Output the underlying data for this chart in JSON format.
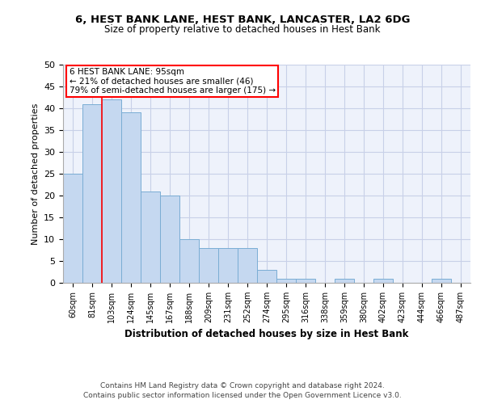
{
  "title1": "6, HEST BANK LANE, HEST BANK, LANCASTER, LA2 6DG",
  "title2": "Size of property relative to detached houses in Hest Bank",
  "xlabel": "Distribution of detached houses by size in Hest Bank",
  "ylabel": "Number of detached properties",
  "categories": [
    "60sqm",
    "81sqm",
    "103sqm",
    "124sqm",
    "145sqm",
    "167sqm",
    "188sqm",
    "209sqm",
    "231sqm",
    "252sqm",
    "274sqm",
    "295sqm",
    "316sqm",
    "338sqm",
    "359sqm",
    "380sqm",
    "402sqm",
    "423sqm",
    "444sqm",
    "466sqm",
    "487sqm"
  ],
  "values": [
    25,
    41,
    42,
    39,
    21,
    20,
    10,
    8,
    8,
    8,
    3,
    1,
    1,
    0,
    1,
    0,
    1,
    0,
    0,
    1,
    0
  ],
  "bar_color": "#c5d8f0",
  "bar_edge_color": "#7aadd4",
  "ylim": [
    0,
    50
  ],
  "yticks": [
    0,
    5,
    10,
    15,
    20,
    25,
    30,
    35,
    40,
    45,
    50
  ],
  "property_line_x": 1.5,
  "annotation_line1": "6 HEST BANK LANE: 95sqm",
  "annotation_line2": "← 21% of detached houses are smaller (46)",
  "annotation_line3": "79% of semi-detached houses are larger (175) →",
  "footer1": "Contains HM Land Registry data © Crown copyright and database right 2024.",
  "footer2": "Contains public sector information licensed under the Open Government Licence v3.0.",
  "bg_color": "#eef2fb",
  "grid_color": "#c8d0e8"
}
